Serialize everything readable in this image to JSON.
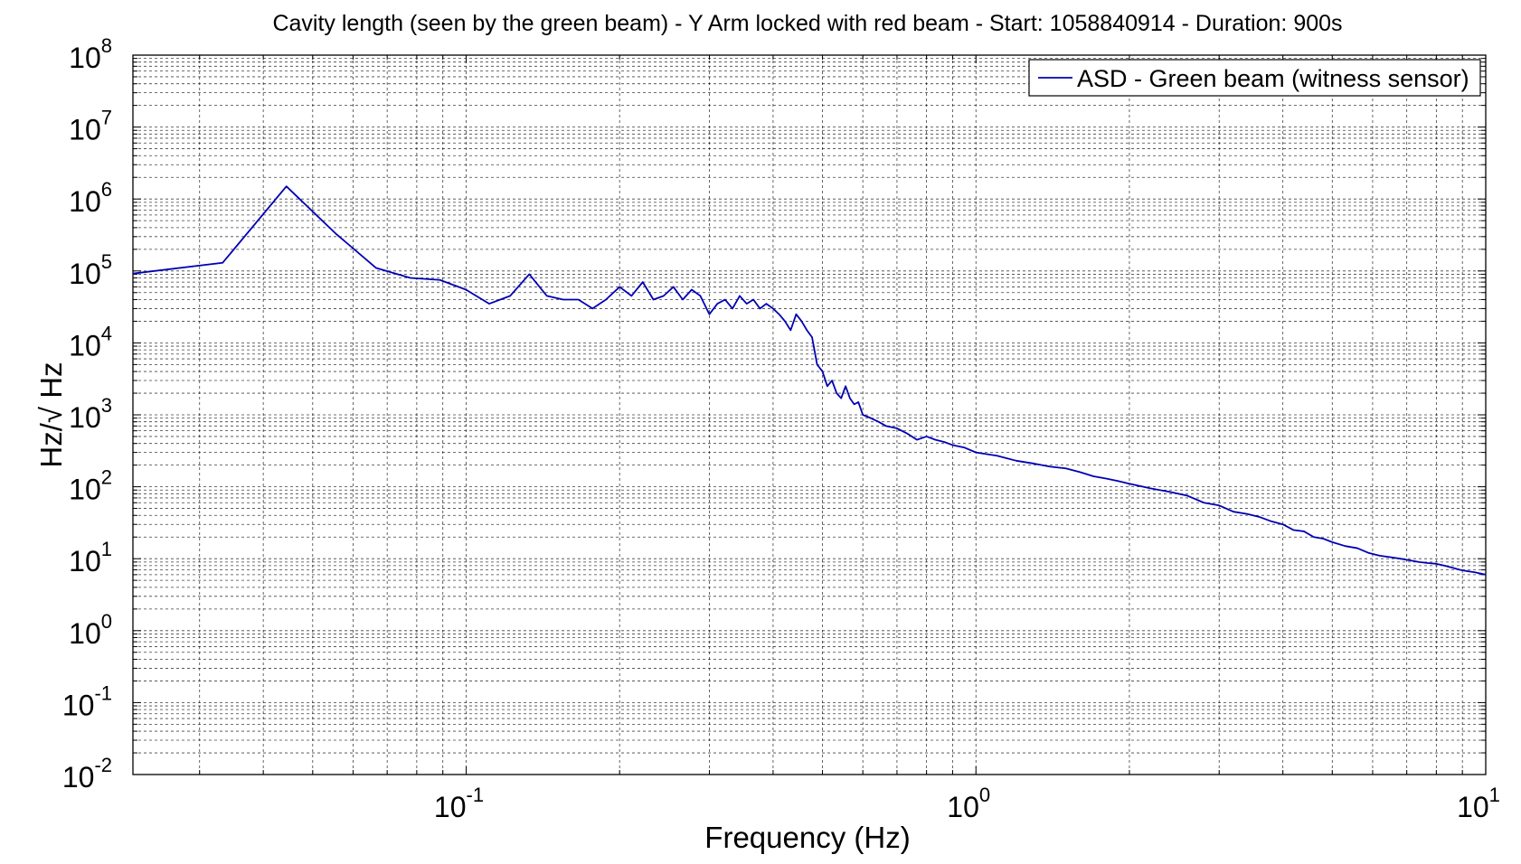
{
  "chart_data": {
    "type": "line",
    "title": "Cavity length (seen by the green beam) - Y Arm locked with red beam - Start: 1058840914 - Duration: 900s",
    "xlabel": "Frequency (Hz)",
    "ylabel": "Hz/√ Hz",
    "x_scale": "log",
    "y_scale": "log",
    "xlim": [
      0.0222,
      10
    ],
    "ylim": [
      0.01,
      100000000
    ],
    "grid": true,
    "legend_position": "top-right",
    "x_ticks": [
      {
        "value": 0.1,
        "base": "10",
        "exp": "-1"
      },
      {
        "value": 1,
        "base": "10",
        "exp": "0"
      },
      {
        "value": 10,
        "base": "10",
        "exp": "1"
      }
    ],
    "y_ticks": [
      {
        "value": 0.01,
        "base": "10",
        "exp": "-2"
      },
      {
        "value": 0.1,
        "base": "10",
        "exp": "-1"
      },
      {
        "value": 1,
        "base": "10",
        "exp": "0"
      },
      {
        "value": 10,
        "base": "10",
        "exp": "1"
      },
      {
        "value": 100,
        "base": "10",
        "exp": "2"
      },
      {
        "value": 1000,
        "base": "10",
        "exp": "3"
      },
      {
        "value": 10000,
        "base": "10",
        "exp": "4"
      },
      {
        "value": 100000,
        "base": "10",
        "exp": "5"
      },
      {
        "value": 1000000,
        "base": "10",
        "exp": "6"
      },
      {
        "value": 10000000,
        "base": "10",
        "exp": "7"
      },
      {
        "value": 100000000,
        "base": "10",
        "exp": "8"
      }
    ],
    "series": [
      {
        "name": "ASD - Green beam (witness sensor)",
        "color": "#0000b4",
        "x": [
          0.0222,
          0.0333,
          0.0444,
          0.0555,
          0.0666,
          0.0777,
          0.0888,
          0.0999,
          0.111,
          0.122,
          0.133,
          0.144,
          0.155,
          0.166,
          0.177,
          0.188,
          0.2,
          0.211,
          0.222,
          0.233,
          0.244,
          0.255,
          0.266,
          0.277,
          0.288,
          0.3,
          0.311,
          0.322,
          0.333,
          0.344,
          0.355,
          0.366,
          0.377,
          0.388,
          0.4,
          0.411,
          0.422,
          0.433,
          0.444,
          0.455,
          0.466,
          0.477,
          0.488,
          0.5,
          0.511,
          0.522,
          0.533,
          0.544,
          0.555,
          0.566,
          0.577,
          0.588,
          0.6,
          0.622,
          0.644,
          0.666,
          0.7,
          0.733,
          0.766,
          0.8,
          0.833,
          0.866,
          0.9,
          0.95,
          1.0,
          1.1,
          1.2,
          1.3,
          1.4,
          1.5,
          1.6,
          1.7,
          1.8,
          1.9,
          2.0,
          2.2,
          2.4,
          2.6,
          2.8,
          3.0,
          3.2,
          3.4,
          3.6,
          3.8,
          4.0,
          4.2,
          4.4,
          4.6,
          4.8,
          5.0,
          5.3,
          5.6,
          5.9,
          6.2,
          6.5,
          6.8,
          7.1,
          7.4,
          7.7,
          8.0,
          8.3,
          8.6,
          8.9,
          9.2,
          9.5,
          9.8,
          10.0
        ],
        "values": [
          92000,
          130000,
          1500000,
          330000,
          110000,
          80000,
          75000,
          55000,
          35000,
          45000,
          90000,
          45000,
          40000,
          40000,
          30000,
          40000,
          60000,
          45000,
          70000,
          40000,
          45000,
          60000,
          40000,
          55000,
          45000,
          25000,
          35000,
          40000,
          30000,
          45000,
          35000,
          40000,
          30000,
          35000,
          30000,
          25000,
          20000,
          15000,
          25000,
          20000,
          15000,
          12000,
          5000,
          4000,
          2500,
          3000,
          2000,
          1700,
          2500,
          1700,
          1400,
          1500,
          1000,
          900,
          800,
          700,
          650,
          550,
          450,
          500,
          450,
          420,
          380,
          350,
          300,
          270,
          230,
          210,
          190,
          180,
          160,
          140,
          130,
          120,
          110,
          95,
          85,
          75,
          60,
          55,
          45,
          42,
          38,
          33,
          30,
          25,
          24,
          20,
          19,
          17,
          15,
          14,
          12,
          11,
          10.5,
          10,
          9.5,
          9,
          8.7,
          8.5,
          8,
          7.5,
          7,
          6.7,
          6.5,
          6.2,
          6
        ]
      }
    ]
  }
}
